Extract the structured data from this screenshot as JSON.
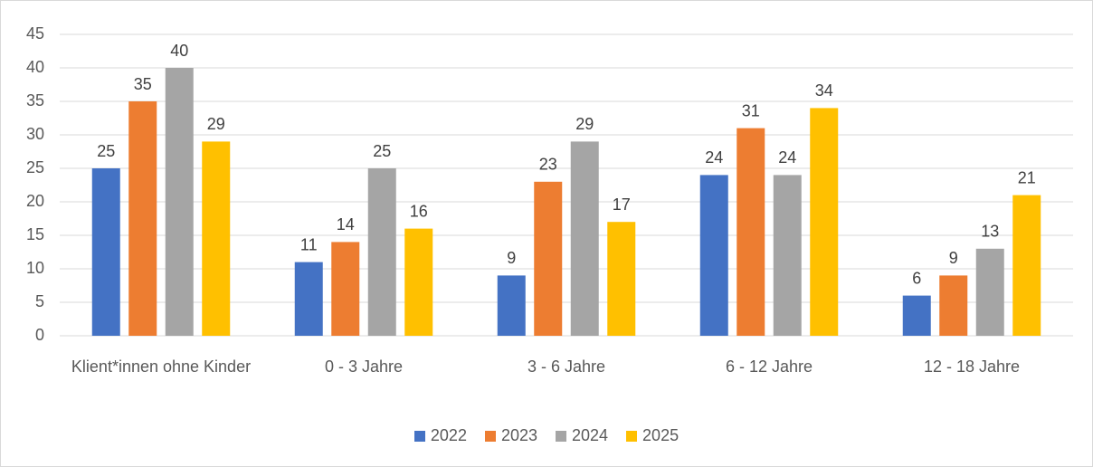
{
  "chart_data": {
    "type": "bar",
    "categories": [
      "Klient*innen ohne Kinder",
      "0 - 3 Jahre",
      "3 - 6 Jahre",
      "6 - 12 Jahre",
      "12 - 18 Jahre"
    ],
    "series": [
      {
        "name": "2022",
        "color": "#4472c4",
        "values": [
          25,
          11,
          9,
          24,
          6
        ]
      },
      {
        "name": "2023",
        "color": "#ed7d31",
        "values": [
          35,
          14,
          23,
          31,
          9
        ]
      },
      {
        "name": "2024",
        "color": "#a5a5a5",
        "values": [
          40,
          25,
          29,
          24,
          13
        ]
      },
      {
        "name": "2025",
        "color": "#ffc000",
        "values": [
          29,
          16,
          17,
          34,
          21
        ]
      }
    ],
    "ylim": [
      0,
      45
    ],
    "yticks": [
      0,
      5,
      10,
      15,
      20,
      25,
      30,
      35,
      40,
      45
    ],
    "grid": true,
    "legend": "bottom"
  }
}
